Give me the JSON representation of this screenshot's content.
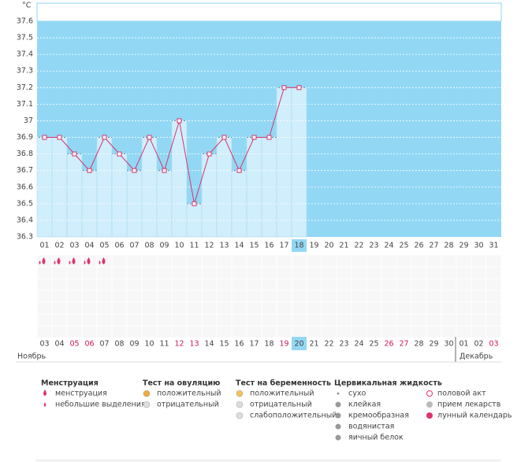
{
  "chart_data": {
    "type": "line",
    "y_unit": "°C",
    "categories": [
      "01",
      "02",
      "03",
      "04",
      "05",
      "06",
      "07",
      "08",
      "09",
      "10",
      "11",
      "12",
      "13",
      "14",
      "15",
      "16",
      "17",
      "18",
      "19",
      "20",
      "21",
      "22",
      "23",
      "24",
      "25",
      "26",
      "27",
      "28",
      "29",
      "30",
      "31"
    ],
    "values": [
      36.9,
      36.9,
      36.8,
      36.7,
      36.9,
      36.8,
      36.7,
      36.9,
      36.7,
      37,
      36.5,
      36.8,
      36.9,
      36.7,
      36.9,
      36.9,
      37.2,
      37.2,
      null,
      null,
      null,
      null,
      null,
      null,
      null,
      null,
      null,
      null,
      null,
      null,
      null
    ],
    "color": "#d8336e",
    "background": "#92d8f4",
    "bar_color": "#d0eefc",
    "highlight": 17,
    "ylim": [
      36.3,
      37.6
    ],
    "yticks": [
      36.3,
      36.4,
      36.5,
      36.6,
      36.7,
      36.8,
      36.9,
      37,
      37.1,
      37.2,
      37.3,
      37.4,
      37.5,
      37.6
    ],
    "grid": true
  },
  "menstruation_days": [
    0,
    1,
    2,
    3,
    4
  ],
  "calendar": {
    "dates": [
      "03",
      "04",
      "05",
      "06",
      "07",
      "08",
      "09",
      "10",
      "11",
      "12",
      "13",
      "14",
      "15",
      "16",
      "17",
      "18",
      "19",
      "20",
      "21",
      "22",
      "23",
      "24",
      "25",
      "26",
      "27",
      "28",
      "29",
      "30",
      "01",
      "02",
      "03"
    ],
    "red": [
      2,
      3,
      9,
      10,
      16,
      23,
      24,
      30
    ],
    "today": 17,
    "months": [
      "Ноябрь",
      "Декабрь"
    ],
    "month_start": 28
  },
  "legend": {
    "groups": [
      {
        "title": "Менструация",
        "items": [
          "менструация",
          "небольшие выделения"
        ]
      },
      {
        "title": "Тест на овуляцию",
        "items": [
          "положительный",
          "отрицательный"
        ]
      },
      {
        "title": "Тест на беременность",
        "items": [
          "положительный",
          "отрицательный",
          "слабоположительный"
        ]
      },
      {
        "title": "Цервикальная жидкость",
        "items": [
          "сухо",
          "клейкая",
          "кремообразная",
          "водянистая",
          "яичный белок"
        ]
      }
    ],
    "extra": [
      "половой акт",
      "прием лекарств",
      "лунный календарь"
    ]
  }
}
